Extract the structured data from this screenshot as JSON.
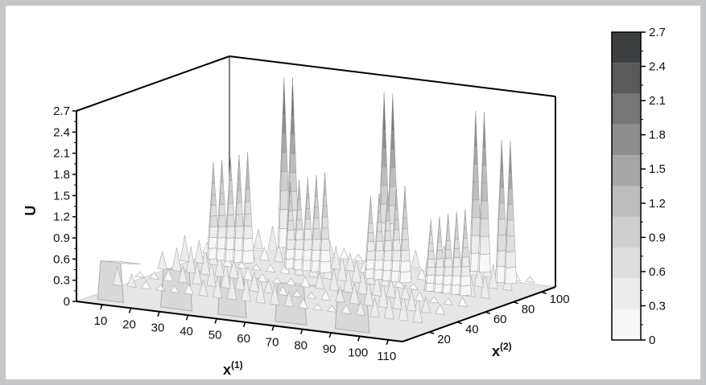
{
  "chart_data": {
    "type": "surface",
    "title": "",
    "xlabel": "x",
    "xlabel_sup": "(1)",
    "ylabel": "x",
    "ylabel_sup": "(2)",
    "zlabel": "U",
    "x_ticks": [
      10,
      20,
      30,
      40,
      50,
      60,
      70,
      80,
      90,
      100,
      110
    ],
    "y_ticks": [
      20,
      40,
      60,
      80,
      100
    ],
    "z_ticks": [
      "0",
      "0.3",
      "0.6",
      "0.9",
      "1.2",
      "1.5",
      "1.8",
      "2.1",
      "2.4",
      "2.7"
    ],
    "xlim": [
      1,
      115
    ],
    "ylim": [
      1,
      110
    ],
    "zlim": [
      0,
      2.7
    ],
    "colorbar": {
      "levels": [
        "0",
        "0.3",
        "0.6",
        "0.9",
        "1.2",
        "1.5",
        "1.8",
        "2.1",
        "2.4",
        "2.7"
      ],
      "colors": [
        "#f7f7f7",
        "#ececec",
        "#dedede",
        "#cfcfcf",
        "#bdbdbd",
        "#a6a6a6",
        "#8e8e8e",
        "#767676",
        "#5a5a5a",
        "#3d3f40"
      ]
    },
    "grid": false,
    "peaks": [
      {
        "x": 25,
        "y": 100,
        "u": 2.6
      },
      {
        "x": 28,
        "y": 100,
        "u": 2.6
      },
      {
        "x": 60,
        "y": 100,
        "u": 2.55
      },
      {
        "x": 63,
        "y": 100,
        "u": 2.55
      },
      {
        "x": 92,
        "y": 100,
        "u": 2.45
      },
      {
        "x": 95,
        "y": 100,
        "u": 2.45
      },
      {
        "x": 107,
        "y": 88,
        "u": 2.2
      },
      {
        "x": 110,
        "y": 88,
        "u": 2.2
      },
      {
        "x": 15,
        "y": 70,
        "u": 1.55
      },
      {
        "x": 18,
        "y": 70,
        "u": 1.6
      },
      {
        "x": 21,
        "y": 70,
        "u": 1.65
      },
      {
        "x": 24,
        "y": 70,
        "u": 1.7
      },
      {
        "x": 27,
        "y": 70,
        "u": 1.75
      },
      {
        "x": 42,
        "y": 70,
        "u": 1.4
      },
      {
        "x": 45,
        "y": 70,
        "u": 1.45
      },
      {
        "x": 48,
        "y": 70,
        "u": 1.5
      },
      {
        "x": 51,
        "y": 70,
        "u": 1.55
      },
      {
        "x": 54,
        "y": 70,
        "u": 1.6
      },
      {
        "x": 70,
        "y": 70,
        "u": 1.35
      },
      {
        "x": 73,
        "y": 70,
        "u": 1.4
      },
      {
        "x": 76,
        "y": 70,
        "u": 1.45
      },
      {
        "x": 79,
        "y": 70,
        "u": 1.5
      },
      {
        "x": 82,
        "y": 70,
        "u": 1.55
      },
      {
        "x": 95,
        "y": 62,
        "u": 1.2
      },
      {
        "x": 98,
        "y": 62,
        "u": 1.25
      },
      {
        "x": 101,
        "y": 62,
        "u": 1.3
      },
      {
        "x": 104,
        "y": 62,
        "u": 1.35
      },
      {
        "x": 107,
        "y": 62,
        "u": 1.4
      }
    ]
  }
}
